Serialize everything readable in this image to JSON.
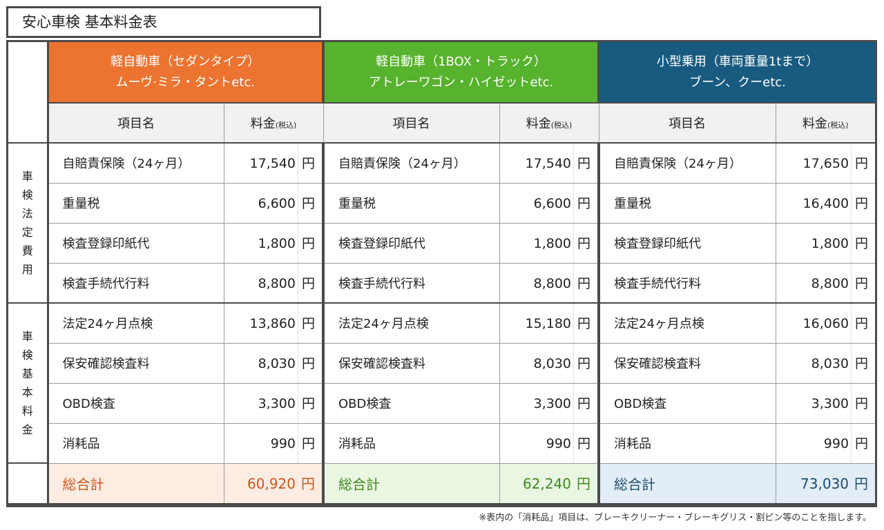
{
  "title": "安心車検 基本料金表",
  "plans": [
    {
      "line1": "軽自動車（セダンタイプ）",
      "line2": "ムーヴ·ミラ・タントetc.",
      "accent": "#ec7430"
    },
    {
      "line1": "軽自動車（1BOX・トラック）",
      "line2": "アトレーワゴン・ハイゼットetc.",
      "accent": "#57b22d"
    },
    {
      "line1": "小型乗用（車両重量1tまで）",
      "line2": "ブーン、クーetc.",
      "accent": "#195b80"
    }
  ],
  "col_headers": {
    "item": "項目名",
    "fee": "料金",
    "fee_suffix": "(税込)"
  },
  "sections": {
    "legal": "車検法定費用",
    "basic": "車検基本料金"
  },
  "currency": "円",
  "rows": [
    {
      "item": "自賠責保険（24ヶ月）",
      "prices": [
        "17,540",
        "17,540",
        "17,650"
      ]
    },
    {
      "item": "重量税",
      "prices": [
        "6,600",
        "6,600",
        "16,400"
      ]
    },
    {
      "item": "検査登録印紙代",
      "prices": [
        "1,800",
        "1,800",
        "1,800"
      ]
    },
    {
      "item": "検査手続代行料",
      "prices": [
        "8,800",
        "8,800",
        "8,800"
      ]
    },
    {
      "item": "法定24ヶ月点検",
      "prices": [
        "13,860",
        "15,180",
        "16,060"
      ]
    },
    {
      "item": "保安確認検査料",
      "prices": [
        "8,030",
        "8,030",
        "8,030"
      ]
    },
    {
      "item": "OBD検査",
      "prices": [
        "3,300",
        "3,300",
        "3,300"
      ]
    },
    {
      "item": "消耗品",
      "prices": [
        "990",
        "990",
        "990"
      ]
    }
  ],
  "total": {
    "label": "総合計",
    "values": [
      "60,920",
      "62,240",
      "73,030"
    ]
  },
  "note": "※表内の「消耗品」項目は、ブレーキクリーナー・ブレーキグリス・割ピン等のことを指します。"
}
